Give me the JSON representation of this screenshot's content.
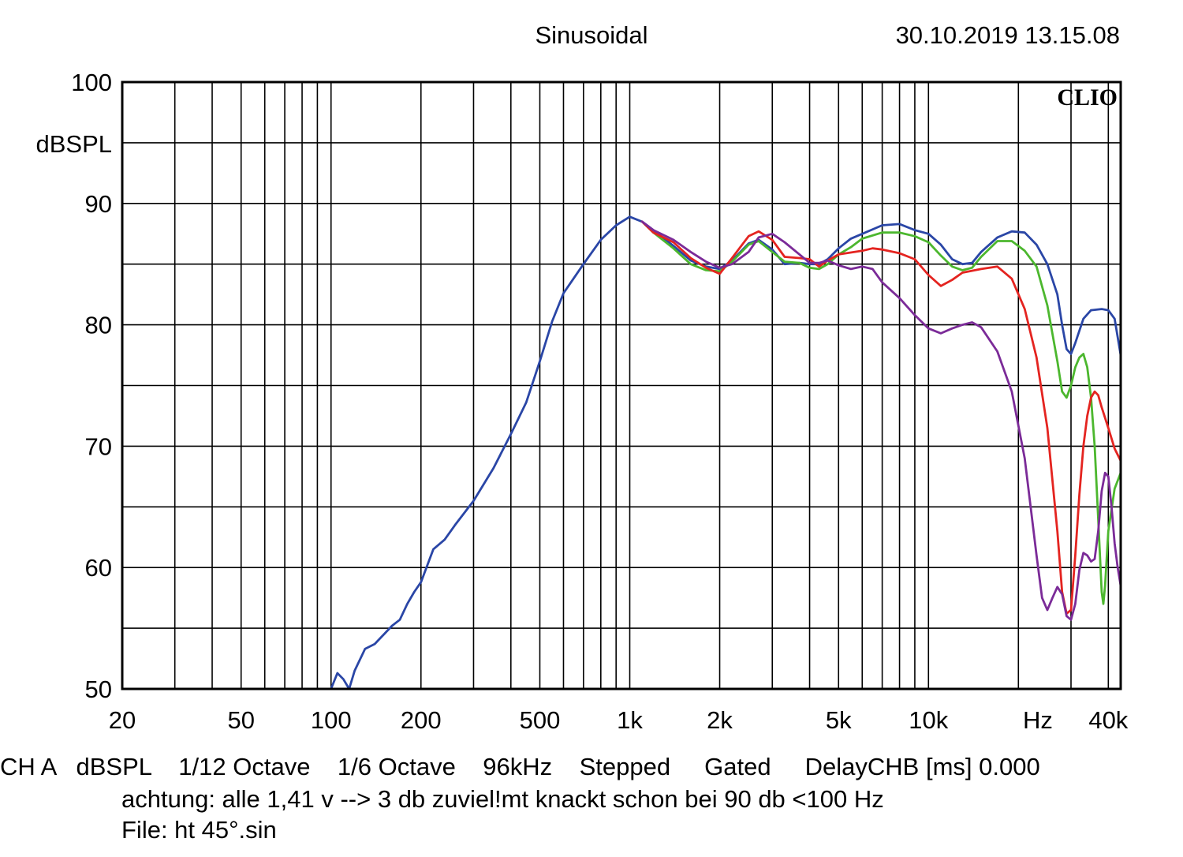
{
  "header": {
    "mode": "Sinusoidal",
    "timestamp": "30.10.2019 13.15.08",
    "brand": "CLIO"
  },
  "chart_data": {
    "type": "line",
    "ylabel": "dBSPL",
    "xlabel": "Hz",
    "xscale": "log",
    "xlim": [
      20,
      44000
    ],
    "ylim": [
      50,
      100
    ],
    "grid": true,
    "legend": "none",
    "yticks": [
      {
        "value": 100,
        "label": "100"
      },
      {
        "value": 90,
        "label": "90"
      },
      {
        "value": 80,
        "label": "80"
      },
      {
        "value": 70,
        "label": "70"
      },
      {
        "value": 60,
        "label": "60"
      },
      {
        "value": 50,
        "label": "50"
      }
    ],
    "xticks": [
      {
        "value": 20,
        "label": "20"
      },
      {
        "value": 50,
        "label": "50"
      },
      {
        "value": 100,
        "label": "100"
      },
      {
        "value": 200,
        "label": "200"
      },
      {
        "value": 500,
        "label": "500"
      },
      {
        "value": 1000,
        "label": "1k"
      },
      {
        "value": 2000,
        "label": "2k"
      },
      {
        "value": 5000,
        "label": "5k"
      },
      {
        "value": 10000,
        "label": "10k"
      },
      {
        "value": 40000,
        "label": "40k"
      }
    ],
    "series": [
      {
        "color": "#2a46a6",
        "points": [
          [
            100,
            50
          ],
          [
            105,
            51.3
          ],
          [
            110,
            50.8
          ],
          [
            115,
            50
          ],
          [
            120,
            51.5
          ],
          [
            130,
            53.3
          ],
          [
            140,
            53.7
          ],
          [
            160,
            55.2
          ],
          [
            170,
            55.7
          ],
          [
            180,
            57
          ],
          [
            190,
            58
          ],
          [
            200,
            58.8
          ],
          [
            220,
            61.5
          ],
          [
            240,
            62.3
          ],
          [
            260,
            63.5
          ],
          [
            300,
            65.5
          ],
          [
            350,
            68.2
          ],
          [
            400,
            71
          ],
          [
            450,
            73.6
          ],
          [
            500,
            77
          ],
          [
            550,
            80.3
          ],
          [
            600,
            82.6
          ],
          [
            700,
            85
          ],
          [
            800,
            87
          ],
          [
            900,
            88.2
          ],
          [
            1000,
            88.9
          ],
          [
            1100,
            88.5
          ],
          [
            1200,
            87.8
          ],
          [
            1400,
            86.5
          ],
          [
            1600,
            85.3
          ],
          [
            1800,
            84.8
          ],
          [
            2000,
            84.6
          ],
          [
            2200,
            85.3
          ],
          [
            2500,
            86.7
          ],
          [
            2700,
            87
          ],
          [
            3000,
            86.2
          ],
          [
            3300,
            85
          ],
          [
            3700,
            85.1
          ],
          [
            4000,
            85
          ],
          [
            4300,
            85
          ],
          [
            4600,
            85.4
          ],
          [
            5000,
            86.3
          ],
          [
            5500,
            87.1
          ],
          [
            6000,
            87.5
          ],
          [
            7000,
            88.2
          ],
          [
            8000,
            88.3
          ],
          [
            9000,
            87.8
          ],
          [
            10000,
            87.5
          ],
          [
            11000,
            86.6
          ],
          [
            12000,
            85.4
          ],
          [
            13000,
            85
          ],
          [
            14000,
            85.1
          ],
          [
            15000,
            86
          ],
          [
            17000,
            87.2
          ],
          [
            19000,
            87.7
          ],
          [
            21000,
            87.6
          ],
          [
            23000,
            86.6
          ],
          [
            25000,
            85
          ],
          [
            27000,
            82.5
          ],
          [
            28000,
            80
          ],
          [
            29000,
            78
          ],
          [
            30000,
            77.6
          ],
          [
            31000,
            78.5
          ],
          [
            33000,
            80.5
          ],
          [
            35000,
            81.2
          ],
          [
            38000,
            81.3
          ],
          [
            40000,
            81.2
          ],
          [
            42000,
            80.5
          ],
          [
            44000,
            77.5
          ]
        ]
      },
      {
        "color": "#4cb72e",
        "points": [
          [
            1100,
            88.5
          ],
          [
            1200,
            87.6
          ],
          [
            1400,
            86.3
          ],
          [
            1600,
            85
          ],
          [
            1800,
            84.5
          ],
          [
            2000,
            84.4
          ],
          [
            2200,
            85.2
          ],
          [
            2500,
            86.6
          ],
          [
            2700,
            86.9
          ],
          [
            3000,
            86
          ],
          [
            3300,
            85.2
          ],
          [
            3700,
            85.1
          ],
          [
            4000,
            84.7
          ],
          [
            4300,
            84.6
          ],
          [
            4600,
            85
          ],
          [
            5000,
            85.8
          ],
          [
            5500,
            86.4
          ],
          [
            6000,
            87.1
          ],
          [
            7000,
            87.6
          ],
          [
            8000,
            87.6
          ],
          [
            9000,
            87.3
          ],
          [
            10000,
            86.8
          ],
          [
            11000,
            85.7
          ],
          [
            12000,
            84.8
          ],
          [
            13000,
            84.5
          ],
          [
            14000,
            84.7
          ],
          [
            15000,
            85.6
          ],
          [
            17000,
            86.9
          ],
          [
            19000,
            86.9
          ],
          [
            21000,
            86.1
          ],
          [
            23000,
            84.8
          ],
          [
            25000,
            81.6
          ],
          [
            27000,
            77
          ],
          [
            28000,
            74.5
          ],
          [
            29000,
            74
          ],
          [
            30000,
            75
          ],
          [
            31000,
            76.5
          ],
          [
            32000,
            77.3
          ],
          [
            33000,
            77.6
          ],
          [
            34000,
            76.5
          ],
          [
            35000,
            74
          ],
          [
            36000,
            70
          ],
          [
            37000,
            64
          ],
          [
            38000,
            58
          ],
          [
            38500,
            57
          ],
          [
            39000,
            58.5
          ],
          [
            40000,
            63
          ],
          [
            42000,
            66.5
          ],
          [
            44000,
            67.8
          ]
        ]
      },
      {
        "color": "#e42420",
        "points": [
          [
            1100,
            88.5
          ],
          [
            1200,
            87.6
          ],
          [
            1400,
            86.8
          ],
          [
            1600,
            85.5
          ],
          [
            1800,
            84.7
          ],
          [
            2000,
            84.2
          ],
          [
            2200,
            85.5
          ],
          [
            2500,
            87.3
          ],
          [
            2700,
            87.7
          ],
          [
            3000,
            87
          ],
          [
            3300,
            85.6
          ],
          [
            3700,
            85.5
          ],
          [
            4000,
            85.4
          ],
          [
            4300,
            84.8
          ],
          [
            4600,
            85.3
          ],
          [
            5000,
            85.8
          ],
          [
            6000,
            86.1
          ],
          [
            6500,
            86.3
          ],
          [
            7000,
            86.2
          ],
          [
            8000,
            85.9
          ],
          [
            9000,
            85.4
          ],
          [
            10000,
            84.1
          ],
          [
            11000,
            83.2
          ],
          [
            12000,
            83.7
          ],
          [
            13000,
            84.3
          ],
          [
            15000,
            84.6
          ],
          [
            17000,
            84.8
          ],
          [
            19000,
            83.8
          ],
          [
            21000,
            81.3
          ],
          [
            23000,
            77.3
          ],
          [
            25000,
            71.5
          ],
          [
            27000,
            63
          ],
          [
            28000,
            58
          ],
          [
            29000,
            56.2
          ],
          [
            30000,
            56.5
          ],
          [
            31000,
            61
          ],
          [
            32000,
            66
          ],
          [
            33000,
            70
          ],
          [
            34000,
            72.5
          ],
          [
            35000,
            74
          ],
          [
            36000,
            74.5
          ],
          [
            37000,
            74.2
          ],
          [
            38000,
            73.2
          ],
          [
            40000,
            71.5
          ],
          [
            42000,
            69.8
          ],
          [
            44000,
            68.8
          ]
        ]
      },
      {
        "color": "#7b2b98",
        "points": [
          [
            1100,
            88.5
          ],
          [
            1200,
            87.8
          ],
          [
            1400,
            87
          ],
          [
            1600,
            86
          ],
          [
            1800,
            85.2
          ],
          [
            2000,
            84.7
          ],
          [
            2200,
            85
          ],
          [
            2500,
            86
          ],
          [
            2700,
            87.2
          ],
          [
            3000,
            87.5
          ],
          [
            3300,
            86.8
          ],
          [
            3700,
            85.8
          ],
          [
            4000,
            85.1
          ],
          [
            4300,
            85.1
          ],
          [
            4600,
            85.3
          ],
          [
            5000,
            84.9
          ],
          [
            5500,
            84.6
          ],
          [
            6000,
            84.8
          ],
          [
            6500,
            84.6
          ],
          [
            7000,
            83.5
          ],
          [
            8000,
            82.2
          ],
          [
            9000,
            80.8
          ],
          [
            10000,
            79.7
          ],
          [
            11000,
            79.3
          ],
          [
            12000,
            79.7
          ],
          [
            13000,
            80
          ],
          [
            14000,
            80.2
          ],
          [
            15000,
            79.8
          ],
          [
            17000,
            77.8
          ],
          [
            19000,
            74.5
          ],
          [
            21000,
            69
          ],
          [
            23000,
            61
          ],
          [
            24000,
            57.5
          ],
          [
            25000,
            56.5
          ],
          [
            26000,
            57.5
          ],
          [
            27000,
            58.4
          ],
          [
            28000,
            57.8
          ],
          [
            29000,
            56
          ],
          [
            30000,
            55.7
          ],
          [
            31000,
            57
          ],
          [
            32000,
            59.8
          ],
          [
            33000,
            61.2
          ],
          [
            34000,
            61
          ],
          [
            35000,
            60.5
          ],
          [
            36000,
            60.7
          ],
          [
            37000,
            63
          ],
          [
            38000,
            66.3
          ],
          [
            39000,
            67.8
          ],
          [
            40000,
            67.5
          ],
          [
            41000,
            65
          ],
          [
            42000,
            62
          ],
          [
            43000,
            60
          ],
          [
            44000,
            58.5
          ]
        ]
      }
    ]
  },
  "footer": {
    "line1": "CH A   dBSPL    1/12 Octave    1/6 Octave    96kHz    Stepped     Gated     DelayCHB [ms] 0.000",
    "line2": "achtung: alle 1,41 v --> 3 db zuviel!mt knackt schon bei 90 db <100 Hz",
    "line3": "File: ht 45°.sin"
  }
}
